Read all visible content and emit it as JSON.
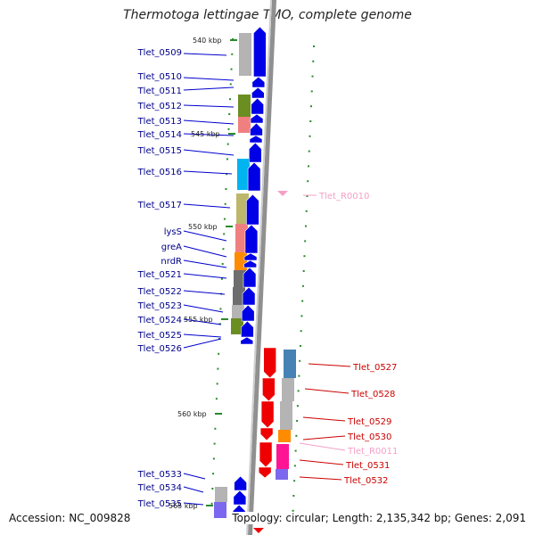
{
  "title": "Thermotoga lettingae TMO, complete genome",
  "footer": {
    "accession": "Accession: NC_009828",
    "summary": "Topology: circular; Length: 2,135,342 bp; Genes: 2,091"
  },
  "scale_labels": [
    "540 kbp",
    "545 kbp",
    "550 kbp",
    "555 kbp",
    "560 kbp",
    "565 kbp"
  ],
  "left_genes": [
    "Tlet_0509",
    "Tlet_0510",
    "Tlet_0511",
    "Tlet_0512",
    "Tlet_0513",
    "Tlet_0514",
    "Tlet_0515",
    "Tlet_0516",
    "Tlet_0517",
    "lysS",
    "greA",
    "nrdR",
    "Tlet_0521",
    "Tlet_0522",
    "Tlet_0523",
    "Tlet_0524",
    "Tlet_0525",
    "Tlet_0526",
    "Tlet_0533",
    "Tlet_0534",
    "Tlet_0535"
  ],
  "right_genes": [
    "Tlet_R0010",
    "Tlet_0527",
    "Tlet_0528",
    "Tlet_0529",
    "Tlet_0530",
    "Tlet_R0011",
    "Tlet_0531",
    "Tlet_0532"
  ],
  "colors": {
    "forward_gene": "#0000e6",
    "reverse_gene": "#ee0000",
    "rna_gene": "#f4a0c8",
    "backbone": "#909090",
    "tick": "#2a8a2a"
  }
}
